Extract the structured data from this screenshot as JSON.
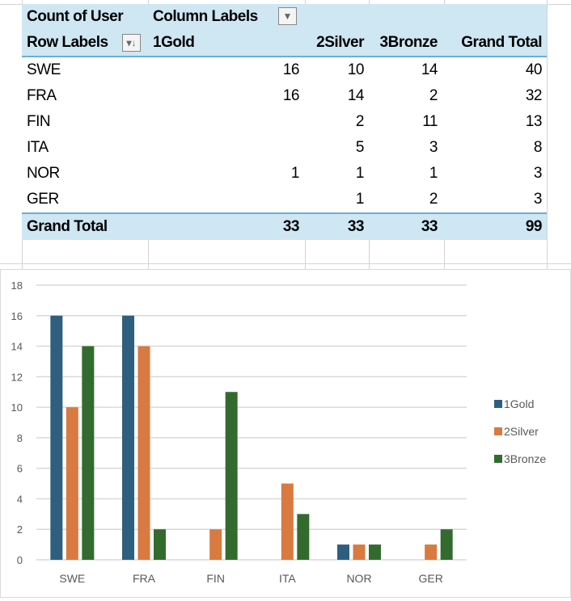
{
  "pivot": {
    "value_field": "Count of User",
    "column_labels": "Column Labels",
    "row_labels": "Row Labels",
    "columns": [
      "1Gold",
      "2Silver",
      "3Bronze",
      "Grand Total"
    ],
    "rows": [
      {
        "label": "SWE",
        "values": [
          "16",
          "10",
          "14",
          "40"
        ]
      },
      {
        "label": "FRA",
        "values": [
          "16",
          "14",
          "2",
          "32"
        ]
      },
      {
        "label": "FIN",
        "values": [
          "",
          "2",
          "11",
          "13"
        ]
      },
      {
        "label": "ITA",
        "values": [
          "",
          "5",
          "3",
          "8"
        ]
      },
      {
        "label": "NOR",
        "values": [
          "1",
          "1",
          "1",
          "3"
        ]
      },
      {
        "label": "GER",
        "values": [
          "",
          "1",
          "2",
          "3"
        ]
      }
    ],
    "grand_total": {
      "label": "Grand Total",
      "values": [
        "33",
        "33",
        "33",
        "99"
      ]
    },
    "header_color": "#cfe6f3"
  },
  "chart_data": {
    "type": "bar",
    "categories": [
      "SWE",
      "FRA",
      "FIN",
      "ITA",
      "NOR",
      "GER"
    ],
    "series": [
      {
        "name": "1Gold",
        "values": [
          16,
          16,
          0,
          0,
          1,
          0
        ],
        "color": "#2e5f7f"
      },
      {
        "name": "2Silver",
        "values": [
          10,
          14,
          2,
          5,
          1,
          1
        ],
        "color": "#d97a40"
      },
      {
        "name": "3Bronze",
        "values": [
          14,
          2,
          11,
          3,
          1,
          2
        ],
        "color": "#336b2f"
      }
    ],
    "ylim": [
      0,
      18
    ],
    "yticks": [
      "0",
      "2",
      "4",
      "6",
      "8",
      "10",
      "12",
      "14",
      "16",
      "18"
    ],
    "grid": true,
    "legend": "right",
    "title": "",
    "xlabel": "",
    "ylabel": ""
  }
}
